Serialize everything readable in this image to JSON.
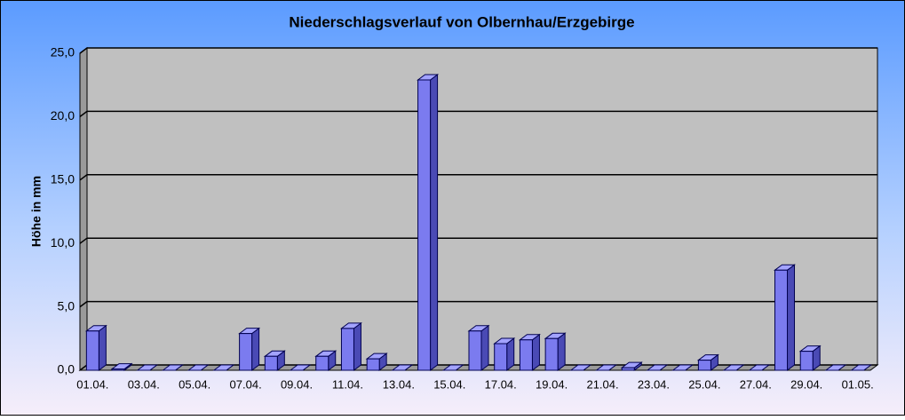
{
  "chart_data": {
    "type": "bar3d",
    "title": "Niederschlagsverlauf von Olbernhau/Erzgebirge",
    "y_label": "Höhe in  mm",
    "categories": [
      "01.04.",
      null,
      "03.04.",
      null,
      "05.04.",
      null,
      "07.04.",
      null,
      "09.04.",
      null,
      "11.04.",
      null,
      "13.04.",
      null,
      "15.04.",
      null,
      "17.04.",
      null,
      "19.04.",
      null,
      "21.04.",
      null,
      "23.04.",
      null,
      "25.04.",
      null,
      "27.04.",
      null,
      "29.04.",
      null,
      "01.05."
    ],
    "values": [
      3.1,
      0.1,
      0,
      0,
      0,
      0,
      2.9,
      1.1,
      0,
      1.1,
      3.3,
      0.9,
      0,
      22.9,
      0,
      3.1,
      2.1,
      2.4,
      2.5,
      0,
      0,
      0.2,
      0,
      0,
      0.8,
      0,
      0,
      7.9,
      1.5,
      0,
      0
    ],
    "color": "#7b7bef",
    "ylim": [
      0,
      25
    ],
    "yticks": [
      {
        "value": 0,
        "label": "0,0"
      },
      {
        "value": 5,
        "label": "5,0"
      },
      {
        "value": 10,
        "label": "10,0"
      },
      {
        "value": 15,
        "label": "15,0"
      },
      {
        "value": 20,
        "label": "20,0"
      },
      {
        "value": 25,
        "label": "25,0"
      }
    ],
    "grid": true
  }
}
